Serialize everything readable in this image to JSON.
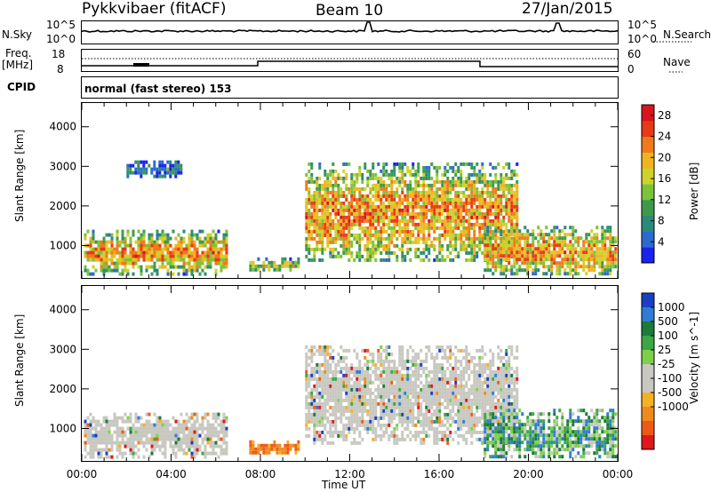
{
  "header": {
    "station": "Pykkvibaer (fitACF)",
    "beam": "Beam 10",
    "date": "27/Jan/2015"
  },
  "top_panels": {
    "nsky_label": "N.Sky",
    "nsearch_label": "N.Search",
    "freq_label_1": "Freq.",
    "freq_label_2": "[MHz]",
    "nave_label": "Nave",
    "cpid_label": "CPID",
    "cpid_value": "normal (fast stereo) 153",
    "nsky_ticks": [
      "10^5",
      "10^0"
    ],
    "nsearch_ticks": [
      "10^5",
      "10^0"
    ],
    "freq_ticks": [
      "18",
      "8"
    ],
    "nave_ticks": [
      "60",
      "0"
    ]
  },
  "chart_data": [
    {
      "type": "heatmap",
      "title": "",
      "parameter": "Power",
      "xlabel": "Time UT",
      "ylabel": "Slant Range [km]",
      "xlim": [
        "00:00",
        "24:00"
      ],
      "ylim": [
        180,
        4600
      ],
      "x_ticks": [
        "00:00",
        "04:00",
        "08:00",
        "12:00",
        "16:00",
        "20:00",
        "00:00"
      ],
      "y_ticks": [
        1000,
        2000,
        3000,
        4000
      ],
      "colorbar": {
        "label": "Power [dB]",
        "range": [
          0,
          30
        ],
        "ticks": [
          4,
          8,
          12,
          16,
          20,
          24,
          28
        ],
        "colors": [
          "#1a22ee",
          "#2a6bd0",
          "#2b8a7a",
          "#3e9a4a",
          "#7cc23a",
          "#cfd22a",
          "#f2b320",
          "#f07a1a",
          "#e83a14",
          "#d8141e"
        ]
      },
      "regions": [
        {
          "t0": 0.1,
          "t1": 6.5,
          "r0": 300,
          "r1": 1400,
          "level": "strong"
        },
        {
          "t0": 2.0,
          "t1": 4.5,
          "r0": 2750,
          "r1": 3150,
          "level": "weak"
        },
        {
          "t0": 7.5,
          "t1": 9.7,
          "r0": 350,
          "r1": 700,
          "level": "medium"
        },
        {
          "t0": 10.0,
          "t1": 19.5,
          "r0": 600,
          "r1": 3100,
          "level": "strong"
        },
        {
          "t0": 18.0,
          "t1": 23.9,
          "r0": 250,
          "r1": 1500,
          "level": "strong"
        }
      ]
    },
    {
      "type": "heatmap",
      "title": "",
      "parameter": "Velocity",
      "xlabel": "Time UT",
      "ylabel": "Slant Range [km]",
      "xlim": [
        "00:00",
        "24:00"
      ],
      "ylim": [
        180,
        4600
      ],
      "x_ticks": [
        "00:00",
        "04:00",
        "08:00",
        "12:00",
        "16:00",
        "20:00",
        "00:00"
      ],
      "y_ticks": [
        1000,
        2000,
        3000,
        4000
      ],
      "colorbar": {
        "label": "Velocity [m s^-1]",
        "ticks": [
          "1000",
          "500",
          "100",
          "25",
          "-25",
          "-100",
          "-500",
          "-1000"
        ],
        "colors": [
          "#1b3fc4",
          "#2f7cd6",
          "#1d7a3a",
          "#3aa844",
          "#7ed04a",
          "#c8c8c0",
          "#c8c8c0",
          "#f4b223",
          "#f08a1c",
          "#ee5a16",
          "#e0181c"
        ]
      },
      "regions": [
        {
          "t0": 0.1,
          "t1": 6.5,
          "r0": 300,
          "r1": 1400,
          "dominant": "ground-scatter"
        },
        {
          "t0": 7.5,
          "t1": 9.7,
          "r0": 350,
          "r1": 700,
          "dominant": "negative"
        },
        {
          "t0": 10.0,
          "t1": 19.5,
          "r0": 600,
          "r1": 3100,
          "dominant": "ground-scatter"
        },
        {
          "t0": 18.0,
          "t1": 23.9,
          "r0": 250,
          "r1": 1500,
          "dominant": "positive"
        }
      ]
    }
  ]
}
